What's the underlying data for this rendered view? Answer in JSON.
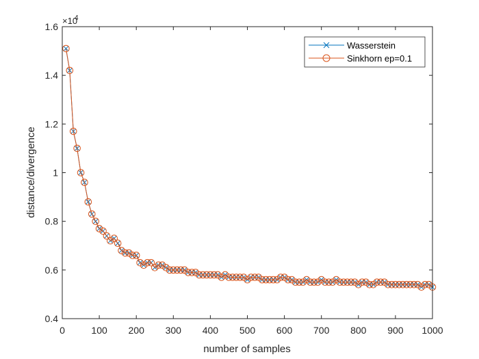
{
  "chart_data": {
    "type": "line",
    "title": "",
    "xlabel": "number of samples",
    "ylabel": "distance/divergence",
    "y_exponent_label": "×10",
    "y_exponent_power": "4",
    "xlim": [
      0,
      1000
    ],
    "ylim": [
      0.4,
      1.6
    ],
    "xticks": [
      0,
      100,
      200,
      300,
      400,
      500,
      600,
      700,
      800,
      900,
      1000
    ],
    "xtick_labels": [
      "0",
      "100",
      "200",
      "300",
      "400",
      "500",
      "600",
      "700",
      "800",
      "900",
      "1000"
    ],
    "yticks": [
      0.4,
      0.6,
      0.8,
      1.0,
      1.2,
      1.4,
      1.6
    ],
    "ytick_labels": [
      "0.4",
      "0.6",
      "0.8",
      "1",
      "1.2",
      "1.4",
      "1.6"
    ],
    "grid": false,
    "legend_position": "top-right",
    "x": [
      10,
      20,
      30,
      40,
      50,
      60,
      70,
      80,
      90,
      100,
      110,
      120,
      130,
      140,
      150,
      160,
      170,
      180,
      190,
      200,
      210,
      220,
      230,
      240,
      250,
      260,
      270,
      280,
      290,
      300,
      310,
      320,
      330,
      340,
      350,
      360,
      370,
      380,
      390,
      400,
      410,
      420,
      430,
      440,
      450,
      460,
      470,
      480,
      490,
      500,
      510,
      520,
      530,
      540,
      550,
      560,
      570,
      580,
      590,
      600,
      610,
      620,
      630,
      640,
      650,
      660,
      670,
      680,
      690,
      700,
      710,
      720,
      730,
      740,
      750,
      760,
      770,
      780,
      790,
      800,
      810,
      820,
      830,
      840,
      850,
      860,
      870,
      880,
      890,
      900,
      910,
      920,
      930,
      940,
      950,
      960,
      970,
      980,
      990,
      1000
    ],
    "series": [
      {
        "name": "Wasserstein",
        "color": "#0072BD",
        "marker": "x",
        "values": [
          1.51,
          1.42,
          1.17,
          1.1,
          1.0,
          0.96,
          0.88,
          0.83,
          0.8,
          0.77,
          0.76,
          0.74,
          0.72,
          0.73,
          0.71,
          0.68,
          0.67,
          0.67,
          0.66,
          0.66,
          0.63,
          0.62,
          0.63,
          0.63,
          0.61,
          0.62,
          0.62,
          0.61,
          0.6,
          0.6,
          0.6,
          0.6,
          0.6,
          0.59,
          0.59,
          0.59,
          0.58,
          0.58,
          0.58,
          0.58,
          0.58,
          0.58,
          0.57,
          0.58,
          0.57,
          0.57,
          0.57,
          0.57,
          0.57,
          0.56,
          0.57,
          0.57,
          0.57,
          0.56,
          0.56,
          0.56,
          0.56,
          0.56,
          0.57,
          0.57,
          0.56,
          0.56,
          0.55,
          0.55,
          0.55,
          0.56,
          0.55,
          0.55,
          0.55,
          0.56,
          0.55,
          0.55,
          0.55,
          0.56,
          0.55,
          0.55,
          0.55,
          0.55,
          0.55,
          0.54,
          0.55,
          0.55,
          0.54,
          0.54,
          0.55,
          0.55,
          0.55,
          0.54,
          0.54,
          0.54,
          0.54,
          0.54,
          0.54,
          0.54,
          0.54,
          0.54,
          0.53,
          0.54,
          0.54,
          0.53
        ]
      },
      {
        "name": "Sinkhorn ep=0.1",
        "color": "#D95319",
        "marker": "o",
        "values": [
          1.51,
          1.42,
          1.17,
          1.1,
          1.0,
          0.96,
          0.88,
          0.83,
          0.8,
          0.77,
          0.76,
          0.74,
          0.72,
          0.73,
          0.71,
          0.68,
          0.67,
          0.67,
          0.66,
          0.66,
          0.63,
          0.62,
          0.63,
          0.63,
          0.61,
          0.62,
          0.62,
          0.61,
          0.6,
          0.6,
          0.6,
          0.6,
          0.6,
          0.59,
          0.59,
          0.59,
          0.58,
          0.58,
          0.58,
          0.58,
          0.58,
          0.58,
          0.57,
          0.58,
          0.57,
          0.57,
          0.57,
          0.57,
          0.57,
          0.56,
          0.57,
          0.57,
          0.57,
          0.56,
          0.56,
          0.56,
          0.56,
          0.56,
          0.57,
          0.57,
          0.56,
          0.56,
          0.55,
          0.55,
          0.55,
          0.56,
          0.55,
          0.55,
          0.55,
          0.56,
          0.55,
          0.55,
          0.55,
          0.56,
          0.55,
          0.55,
          0.55,
          0.55,
          0.55,
          0.54,
          0.55,
          0.55,
          0.54,
          0.54,
          0.55,
          0.55,
          0.55,
          0.54,
          0.54,
          0.54,
          0.54,
          0.54,
          0.54,
          0.54,
          0.54,
          0.54,
          0.53,
          0.54,
          0.54,
          0.53
        ]
      }
    ]
  }
}
